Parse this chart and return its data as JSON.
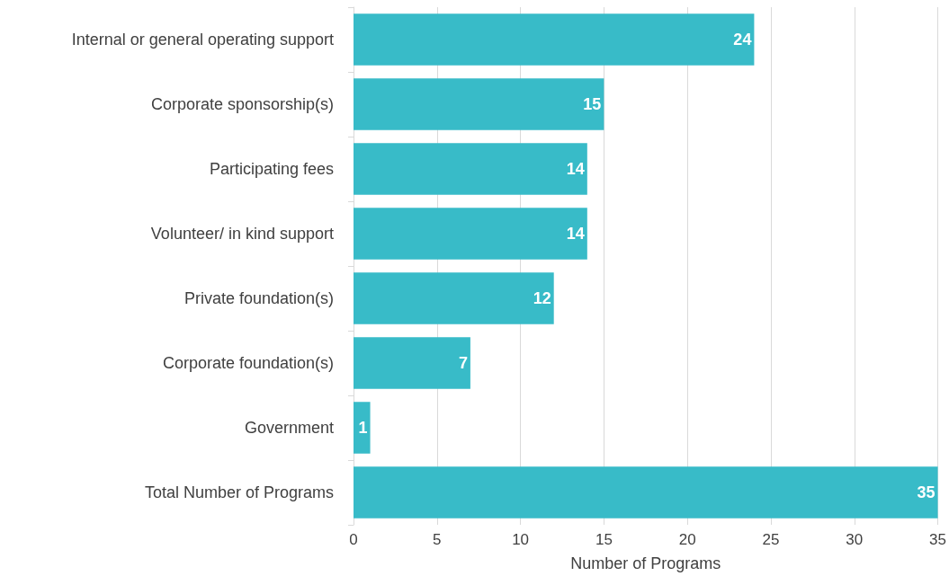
{
  "chart_data": {
    "type": "bar",
    "orientation": "horizontal",
    "xlabel": "Number of Programs",
    "categories": [
      "Internal or general operating support",
      "Corporate sponsorship(s)",
      "Participating fees",
      "Volunteer/ in kind support",
      "Private foundation(s)",
      "Corporate foundation(s)",
      "Government",
      "Total Number of Programs"
    ],
    "values": [
      24,
      15,
      14,
      14,
      12,
      7,
      1,
      35
    ],
    "color": "#38bbc8",
    "xlim": [
      0,
      35
    ],
    "xticks": [
      0,
      5,
      10,
      15,
      20,
      25,
      30,
      35
    ],
    "grid": "x",
    "data_labels": true
  }
}
